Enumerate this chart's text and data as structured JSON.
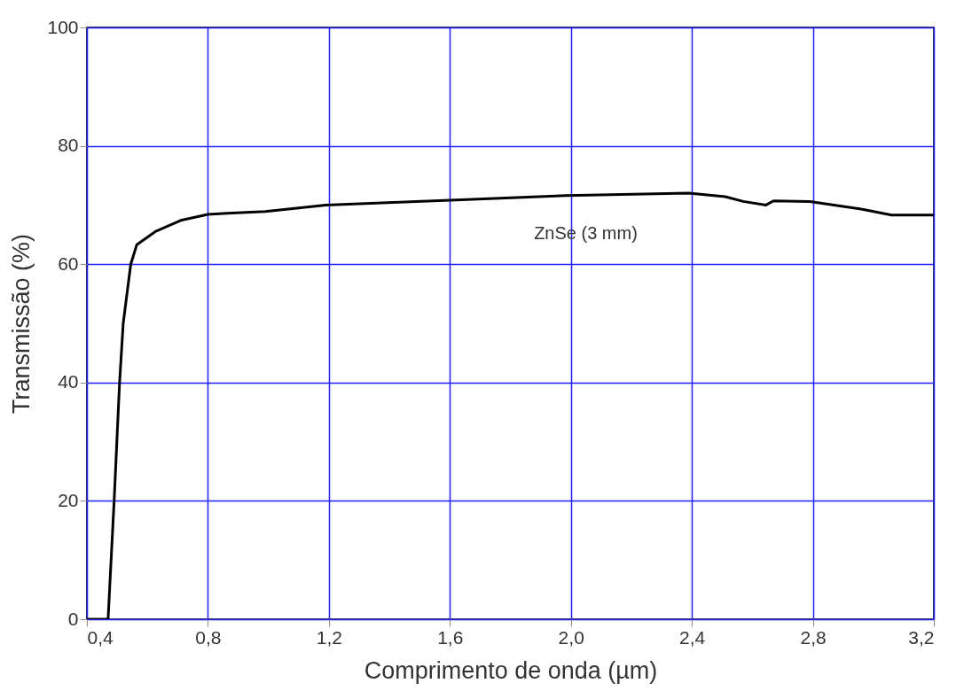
{
  "chart_data": {
    "type": "line",
    "xlabel": "Comprimento de onda (µm)",
    "ylabel": "Transmissão (%)",
    "x": [
      0.4,
      0.47,
      0.49,
      0.508,
      0.52,
      0.545,
      0.565,
      0.626,
      0.71,
      0.8,
      0.864,
      0.99,
      1.19,
      1.6,
      1.985,
      2.39,
      2.51,
      2.57,
      2.645,
      2.67,
      2.79,
      2.96,
      3.06,
      3.18,
      3.2
    ],
    "series": [
      {
        "color": "#000000",
        "values": [
          0,
          0,
          20,
          40,
          50,
          60,
          63.3,
          65.5,
          67.4,
          68.4,
          68.6,
          68.9,
          70.0,
          70.8,
          71.6,
          72.0,
          71.4,
          70.6,
          70.0,
          70.7,
          70.6,
          69.3,
          68.3,
          68.3,
          68.3
        ]
      }
    ],
    "xlim": [
      0.4,
      3.2
    ],
    "xticks": [
      {
        "value": 0.4,
        "label": "0,4"
      },
      {
        "value": 0.8,
        "label": "0,8"
      },
      {
        "value": 1.2,
        "label": "1,2"
      },
      {
        "value": 1.6,
        "label": "1,6"
      },
      {
        "value": 2.0,
        "label": "2,0"
      },
      {
        "value": 2.4,
        "label": "2,4"
      },
      {
        "value": 2.8,
        "label": "2,8"
      },
      {
        "value": 3.2,
        "label": "3,2"
      }
    ],
    "ylim": [
      0,
      100
    ],
    "yticks": [
      0,
      20,
      40,
      60,
      80,
      100
    ],
    "grid": true,
    "annotations": [
      "ZnSe (3 mm)"
    ]
  }
}
